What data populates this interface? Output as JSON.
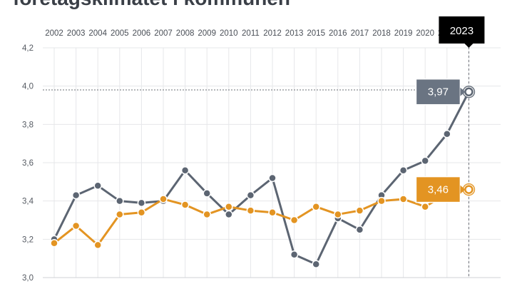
{
  "title": "företagsklimatet i kommunen",
  "colors": {
    "series_1": "#5c6572",
    "series_2": "#e39422",
    "grid": "#e6e7ea",
    "axis": "#cfd2d6",
    "tooltip_bg": "#000000",
    "callout_1_bg": "#6a7482",
    "callout_2_bg": "#e39422"
  },
  "chart_data": {
    "type": "line",
    "title": "",
    "xlabel": "",
    "ylabel": "",
    "categories": [
      "2002",
      "2003",
      "2004",
      "2005",
      "2006",
      "2007",
      "2008",
      "2009",
      "2010",
      "2011",
      "2012",
      "2013",
      "2015",
      "2016",
      "2017",
      "2018",
      "2019",
      "2020",
      "2021",
      "2023"
    ],
    "ylim": [
      3.0,
      4.2
    ],
    "yticks": [
      "3,0",
      "3,2",
      "3,4",
      "3,6",
      "3,8",
      "4,0",
      "4,2"
    ],
    "grid": true,
    "series": [
      {
        "values": [
          3.2,
          3.43,
          3.48,
          3.4,
          3.39,
          3.4,
          3.56,
          3.44,
          3.33,
          3.43,
          3.52,
          3.12,
          3.07,
          3.31,
          3.25,
          3.43,
          3.56,
          3.61,
          3.75,
          3.97
        ]
      },
      {
        "values": [
          3.18,
          3.27,
          3.17,
          3.33,
          3.34,
          3.41,
          3.38,
          3.33,
          3.37,
          3.35,
          3.34,
          3.3,
          3.37,
          3.33,
          3.35,
          3.4,
          3.41,
          3.37,
          3.44,
          3.46
        ]
      }
    ],
    "hover": {
      "year_label": "2023",
      "value_labels": [
        "3,97",
        "3,46"
      ],
      "reference_value": 3.98
    }
  }
}
